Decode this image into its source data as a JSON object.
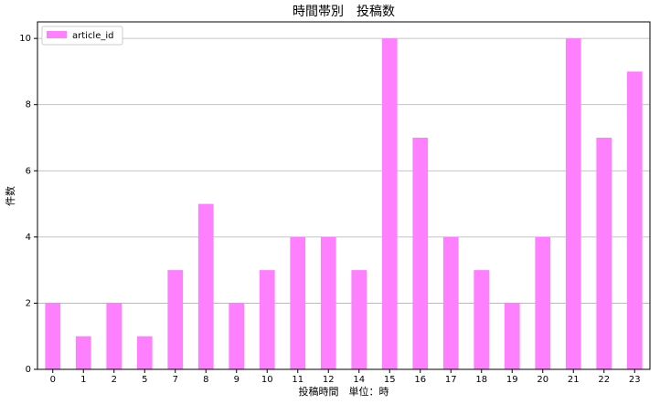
{
  "chart_data": {
    "type": "bar",
    "title": "時間帯別　投稿数",
    "x_label": "投稿時間　単位：時",
    "y_label": "件数",
    "categories": [
      "0",
      "1",
      "2",
      "5",
      "7",
      "8",
      "9",
      "10",
      "11",
      "12",
      "14",
      "15",
      "16",
      "17",
      "18",
      "19",
      "20",
      "21",
      "22",
      "23"
    ],
    "series": [
      {
        "name": "article_id",
        "color": "#ff80ff",
        "values": [
          2,
          1,
          2,
          1,
          3,
          5,
          2,
          3,
          4,
          4,
          3,
          10,
          7,
          4,
          3,
          2,
          4,
          10,
          7,
          9
        ]
      }
    ],
    "ylim": [
      0,
      10.5
    ],
    "yticks": [
      0,
      2,
      4,
      6,
      8,
      10
    ],
    "grid": true,
    "legend": "upper-left"
  }
}
